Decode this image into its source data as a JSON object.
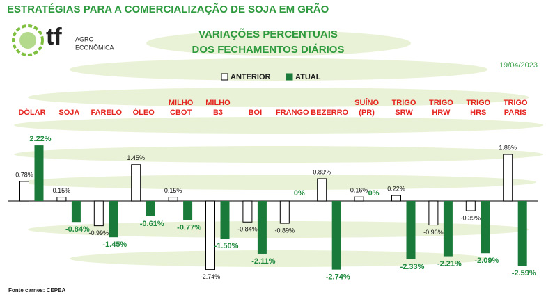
{
  "header": {
    "title": "ESTRATÉGIAS PARA A COMERCIALIZAÇÃO DE SOJA EM GRÃO",
    "logo": "tf",
    "logo_line1": "AGRO",
    "logo_line2": "ECONÔMICA"
  },
  "chart_data": {
    "type": "bar",
    "title": [
      "VARIAÇÕES PERCENTUAIS",
      "DOS FECHAMENTOS DIÁRIOS"
    ],
    "date": "19/04/2023",
    "categories": [
      "DÓLAR",
      "SOJA",
      "FARELO",
      "ÓLEO",
      "MILHO CBOT",
      "MILHO B3",
      "BOI",
      "FRANGO",
      "BEZERRO",
      "SUÍNO (PR)",
      "TRIGO SRW",
      "TRIGO HRW",
      "TRIGO HRS",
      "TRIGO PARIS"
    ],
    "series": [
      {
        "name": "ANTERIOR",
        "color": "#ffffff",
        "values": [
          0.78,
          0.15,
          -0.99,
          1.45,
          0.15,
          -2.74,
          -0.84,
          -0.89,
          0.89,
          0.16,
          0.22,
          -0.96,
          -0.39,
          1.86
        ],
        "value_labels": [
          "0.78%",
          "0.15%",
          "-0.99%",
          "1.45%",
          "0.15%",
          "-2.74%",
          "-0.84%",
          "-0.89%",
          "0.89%",
          "0.16%",
          "0.22%",
          "-0.96%",
          "-0.39%",
          "1.86%"
        ]
      },
      {
        "name": "ATUAL",
        "color": "#1a7a3a",
        "values": [
          2.22,
          -0.84,
          -1.45,
          -0.61,
          -0.77,
          -1.5,
          -2.11,
          0,
          -2.74,
          0,
          -2.33,
          -2.21,
          -2.09,
          -2.59
        ],
        "value_labels": [
          "2.22%",
          "-0.84%",
          "-1.45%",
          "-0.61%",
          "-0.77%",
          "-1.50%",
          "-2.11%",
          "0%",
          "-2.74%",
          "0%",
          "-2.33%",
          "-2.21%",
          "-2.09%",
          "-2.59%"
        ]
      }
    ],
    "source": "Fonte carnes: CEPEA"
  }
}
